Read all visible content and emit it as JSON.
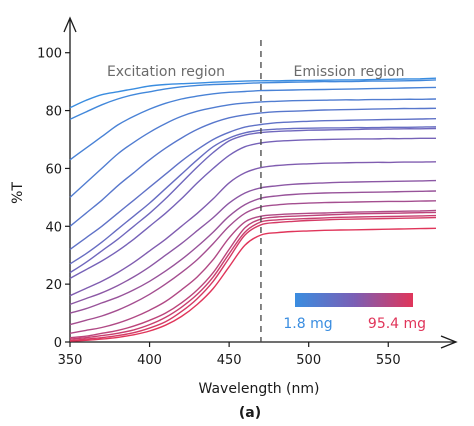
{
  "chart_data": {
    "type": "line",
    "xlabel": "Wavelength (nm)",
    "ylabel": "%T",
    "xlim": [
      350,
      580
    ],
    "ylim": [
      0,
      112
    ],
    "xticks": [
      350,
      400,
      450,
      500,
      550
    ],
    "yticks": [
      0,
      20,
      40,
      60,
      80,
      100
    ],
    "x": [
      350,
      360,
      370,
      380,
      390,
      400,
      410,
      420,
      430,
      440,
      450,
      460,
      470,
      480,
      490,
      500,
      510,
      520,
      530,
      540,
      550,
      560,
      570,
      580
    ],
    "divider_x": 470,
    "annotations": {
      "left_region": "Excitation region",
      "right_region": "Emission region"
    },
    "colorbar": {
      "min_label": "1.8 mg",
      "max_label": "95.4 mg",
      "min_color": "#3a8de0",
      "max_color": "#e0355a"
    },
    "caption": "(a)",
    "series": [
      {
        "values": [
          81,
          83.5,
          85.5,
          86.5,
          87.5,
          88.5,
          89,
          89.3,
          89.5,
          89.8,
          90,
          90.2,
          90.3,
          90.3,
          90.4,
          90.4,
          90.5,
          90.6,
          90.6,
          90.7,
          90.8,
          90.9,
          91,
          91.2
        ]
      },
      {
        "values": [
          77,
          79.5,
          82,
          84,
          85.5,
          86.5,
          87.5,
          88.2,
          88.7,
          89,
          89.2,
          89.4,
          89.6,
          89.7,
          89.8,
          89.9,
          90,
          90,
          90.1,
          90.2,
          90.2,
          90.3,
          90.4,
          90.6
        ]
      },
      {
        "values": [
          63,
          67,
          71,
          75,
          78,
          80.5,
          82.5,
          84,
          85,
          85.8,
          86.3,
          86.6,
          86.9,
          87,
          87.1,
          87.2,
          87.3,
          87.4,
          87.5,
          87.6,
          87.7,
          87.8,
          87.9,
          88
        ]
      },
      {
        "values": [
          50,
          55,
          60,
          65,
          69,
          72.5,
          75.5,
          78,
          79.8,
          81,
          82,
          82.6,
          83,
          83.2,
          83.4,
          83.5,
          83.6,
          83.7,
          83.7,
          83.8,
          83.8,
          83.9,
          83.9,
          84
        ]
      },
      {
        "values": [
          40,
          44.5,
          49,
          54,
          58.5,
          63,
          67,
          70.5,
          73.5,
          75.8,
          77.5,
          78.5,
          79.2,
          79.6,
          79.8,
          80,
          80.2,
          80.3,
          80.4,
          80.5,
          80.6,
          80.7,
          80.7,
          80.8
        ]
      },
      {
        "values": [
          32,
          36,
          40,
          44.5,
          49,
          53.5,
          58,
          62.5,
          66.5,
          70,
          72.5,
          74.3,
          75.2,
          75.8,
          76.1,
          76.3,
          76.5,
          76.6,
          76.7,
          76.8,
          76.9,
          77,
          77.1,
          77.2
        ]
      },
      {
        "values": [
          27,
          30.5,
          34.5,
          39,
          43.5,
          48,
          53,
          58,
          63,
          67.5,
          70.5,
          72.3,
          73.2,
          73.6,
          73.8,
          73.9,
          74,
          74,
          74.1,
          74.1,
          74.2,
          74.2,
          74.3,
          74.4
        ]
      },
      {
        "values": [
          24,
          27.5,
          31.5,
          35.5,
          40,
          44.5,
          49.5,
          55,
          60.5,
          65.5,
          69.5,
          71.5,
          72.4,
          72.8,
          73,
          73.2,
          73.3,
          73.4,
          73.5,
          73.6,
          73.6,
          73.7,
          73.7,
          73.8
        ]
      },
      {
        "values": [
          22,
          25,
          28,
          31.5,
          35.5,
          40,
          44.5,
          49.5,
          55,
          60,
          64.5,
          67.5,
          68.8,
          69.4,
          69.7,
          69.9,
          70,
          70.1,
          70.2,
          70.2,
          70.3,
          70.3,
          70.4,
          70.4
        ]
      },
      {
        "values": [
          16,
          18.5,
          21,
          24,
          27.5,
          31.5,
          35.5,
          40,
          44.5,
          49.5,
          55,
          58.5,
          60.3,
          61,
          61.4,
          61.6,
          61.8,
          61.9,
          62,
          62.1,
          62.1,
          62.2,
          62.2,
          62.3
        ]
      },
      {
        "values": [
          13,
          15,
          17,
          19.5,
          22.5,
          26,
          30,
          34,
          38.5,
          43,
          48,
          51.5,
          53.3,
          54,
          54.5,
          54.8,
          55,
          55.2,
          55.3,
          55.4,
          55.5,
          55.6,
          55.7,
          55.8
        ]
      },
      {
        "values": [
          10,
          11.5,
          13.5,
          15.5,
          18,
          21,
          24.5,
          28.5,
          33,
          38,
          43.5,
          47.5,
          49.7,
          50.5,
          51,
          51.3,
          51.5,
          51.6,
          51.7,
          51.8,
          51.9,
          52,
          52.1,
          52.2
        ]
      },
      {
        "values": [
          6,
          7.5,
          9,
          11,
          13.5,
          16.5,
          20,
          24,
          28.5,
          34,
          40,
          44.5,
          46.7,
          47.4,
          47.8,
          48,
          48.2,
          48.3,
          48.4,
          48.5,
          48.6,
          48.6,
          48.7,
          48.8
        ]
      },
      {
        "values": [
          3,
          4,
          5,
          6.5,
          8.5,
          11,
          14,
          18,
          22.5,
          28.5,
          36,
          41.5,
          43.5,
          44,
          44.3,
          44.5,
          44.6,
          44.8,
          44.9,
          45,
          45.1,
          45.2,
          45.3,
          45.5
        ]
      },
      {
        "values": [
          1.5,
          2,
          3,
          4,
          5.5,
          7.5,
          10,
          13.5,
          18,
          24,
          32,
          39.5,
          42.5,
          43.2,
          43.5,
          43.7,
          43.9,
          44.1,
          44.3,
          44.4,
          44.5,
          44.6,
          44.7,
          44.8
        ]
      },
      {
        "values": [
          1,
          1.5,
          2.2,
          3,
          4.2,
          6,
          8.5,
          12,
          16.5,
          22.5,
          30.5,
          38,
          41.5,
          42.2,
          42.5,
          42.7,
          42.9,
          43.1,
          43.2,
          43.3,
          43.4,
          43.5,
          43.6,
          43.7
        ]
      },
      {
        "values": [
          0.5,
          1,
          1.5,
          2.2,
          3.2,
          4.8,
          7,
          10.5,
          15,
          21,
          29,
          37,
          40.5,
          41.3,
          41.7,
          42,
          42.2,
          42.4,
          42.5,
          42.6,
          42.7,
          42.8,
          42.9,
          43
        ]
      },
      {
        "values": [
          0.3,
          0.6,
          1,
          1.6,
          2.5,
          3.8,
          5.8,
          8.8,
          13,
          18.5,
          26,
          33.5,
          37,
          37.8,
          38.2,
          38.4,
          38.6,
          38.7,
          38.8,
          38.9,
          39,
          39.1,
          39.2,
          39.3
        ]
      }
    ]
  }
}
